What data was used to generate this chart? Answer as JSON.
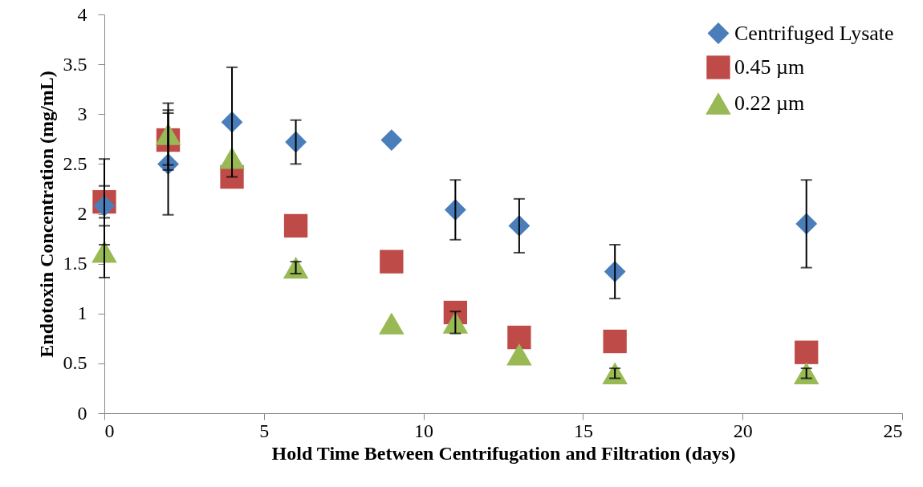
{
  "chart_data": {
    "type": "scatter",
    "xlabel": "Hold Time Between Centrifugation and Filtration (days)",
    "ylabel": "Endotoxin Concentration (mg/mL)",
    "x": [
      0,
      2,
      4,
      6,
      9,
      11,
      13,
      16,
      22
    ],
    "series": [
      {
        "name": "Centrifuged Lysate",
        "color": "#4a7ebb",
        "marker": "diamond",
        "values": [
          2.08,
          2.5,
          2.92,
          2.72,
          2.74,
          2.04,
          1.88,
          1.42,
          1.9
        ],
        "errors": [
          [
            1.69,
            2.55
          ],
          0.51,
          0.55,
          0.22,
          null,
          0.3,
          0.27,
          0.27,
          0.44
        ]
      },
      {
        "name": "0.45 µm",
        "color": "#be4b48",
        "marker": "square",
        "values": [
          2.12,
          2.74,
          2.37,
          1.88,
          1.52,
          1.01,
          0.76,
          0.72,
          0.61
        ],
        "errors": [
          0.16,
          0.3,
          null,
          null,
          null,
          null,
          null,
          null,
          null
        ]
      },
      {
        "name": "0.22 µm",
        "color": "#98b954",
        "marker": "triangle",
        "values": [
          1.62,
          2.8,
          2.56,
          1.46,
          0.9,
          0.91,
          0.59,
          0.4,
          0.4
        ],
        "errors": [
          0.26,
          0.31,
          null,
          0.06,
          null,
          0.11,
          null,
          0.05,
          0.05
        ]
      }
    ],
    "xlim": [
      0,
      25
    ],
    "xticks": [
      0,
      5,
      10,
      15,
      20,
      25
    ],
    "ylim": [
      0,
      4
    ],
    "yticks": [
      0,
      0.5,
      1,
      1.5,
      2,
      2.5,
      3,
      3.5,
      4
    ],
    "grid": false,
    "legend": "top right"
  }
}
